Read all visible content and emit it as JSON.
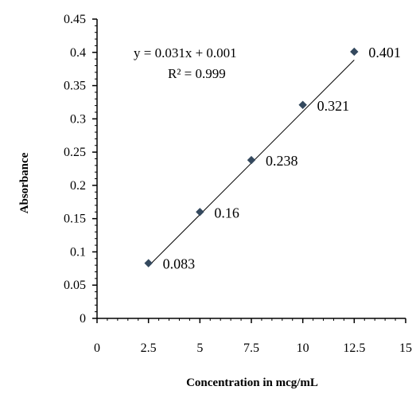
{
  "chart_data": {
    "type": "scatter",
    "xlabel": "Concentration in mcg/mL",
    "ylabel": "Absorbance",
    "xlim": [
      0,
      15
    ],
    "ylim": [
      0,
      0.45
    ],
    "x_ticks": [
      "0",
      "2.5",
      "5",
      "7.5",
      "10",
      "12.5",
      "15"
    ],
    "y_ticks": [
      "0",
      "0.05",
      "0.1",
      "0.15",
      "0.2",
      "0.25",
      "0.3",
      "0.35",
      "0.4",
      "0.45"
    ],
    "grid": false,
    "series": [
      {
        "x": [
          2.5,
          5,
          7.5,
          10,
          12.5
        ],
        "y": [
          0.083,
          0.16,
          0.238,
          0.321,
          0.401
        ],
        "labels": [
          "0.083",
          "0.16",
          "0.238",
          "0.321",
          "0.401"
        ],
        "marker_color": "#34495e"
      }
    ],
    "trendline": {
      "type": "linear",
      "slope": 0.031,
      "intercept": 0.001
    },
    "annotations": {
      "equation": "y = 0.031x + 0.001",
      "r_squared": "R² = 0.999"
    }
  }
}
